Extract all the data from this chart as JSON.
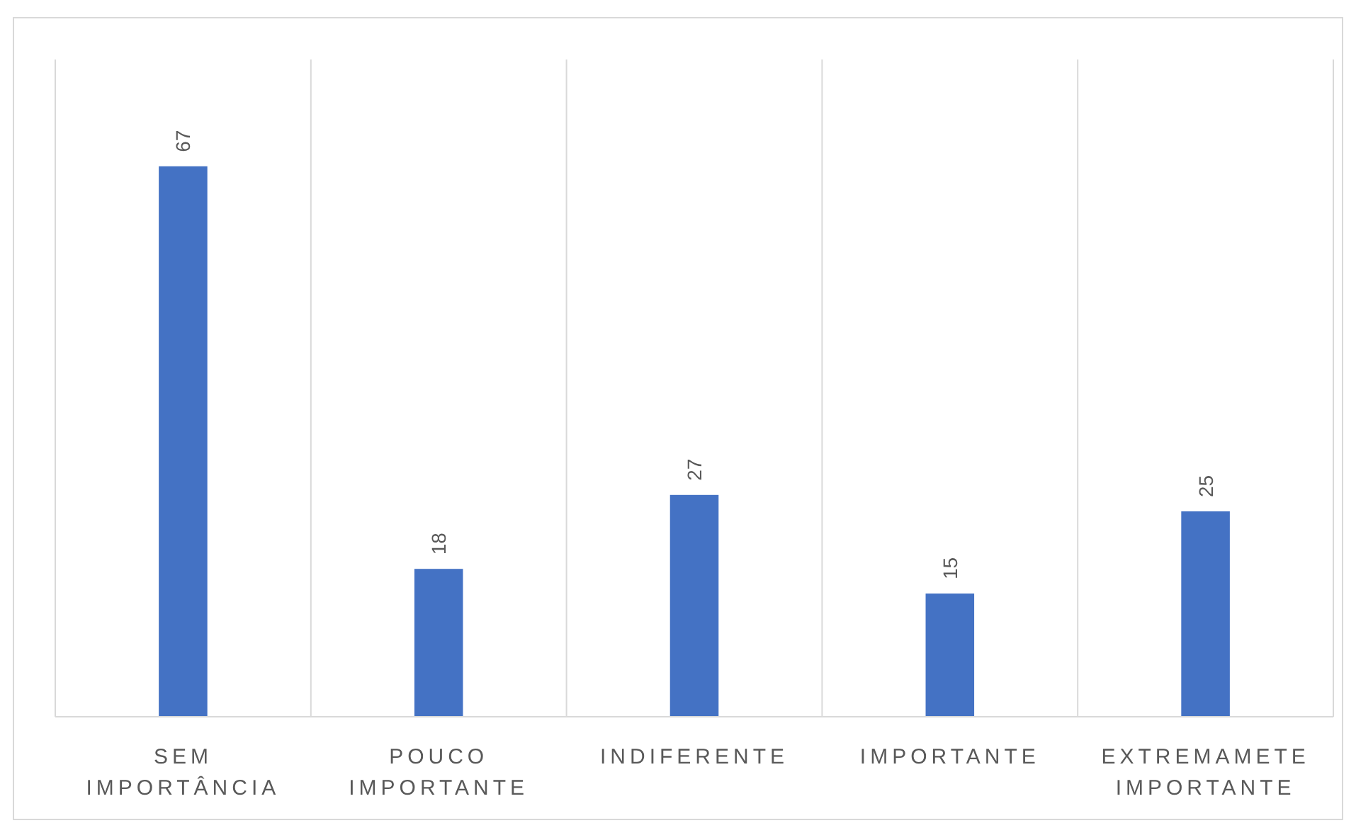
{
  "chart_data": {
    "type": "bar",
    "categories": [
      "SEM IMPORTÂNCIA",
      "POUCO IMPORTANTE",
      "INDIFERENTE",
      "IMPORTANTE",
      "EXTREMAMETE IMPORTANTE"
    ],
    "values": [
      67,
      18,
      27,
      15,
      25
    ],
    "color": "#4472c4",
    "ylim": [
      0,
      80
    ],
    "data_labels": true,
    "grid": "x"
  }
}
